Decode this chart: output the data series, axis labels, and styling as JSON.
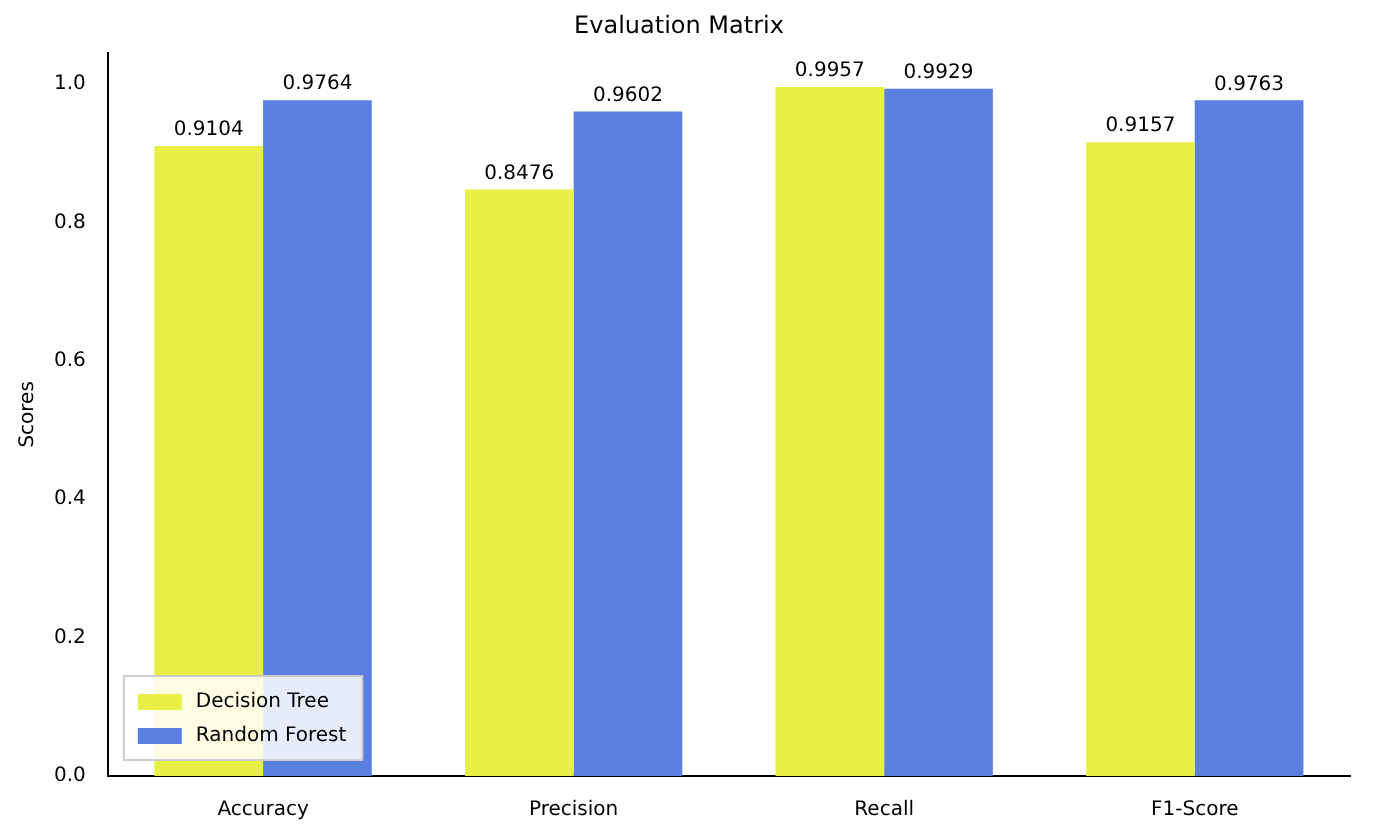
{
  "chart_data": {
    "type": "bar",
    "title": "Evaluation Matrix",
    "ylabel": "Scores",
    "categories": [
      "Accuracy",
      "Precision",
      "Recall",
      "F1-Score"
    ],
    "series": [
      {
        "name": "Decision Tree",
        "color": "#e8ef45",
        "values": [
          0.9104,
          0.8476,
          0.9957,
          0.9157
        ]
      },
      {
        "name": "Random Forest",
        "color": "#5a7fe0",
        "values": [
          0.9764,
          0.9602,
          0.9929,
          0.9763
        ]
      }
    ],
    "ylim": [
      0,
      1.045
    ],
    "yticks": [
      {
        "value": 0,
        "label": "0.0"
      },
      {
        "value": 0.2,
        "label": "0.2"
      },
      {
        "value": 0.4,
        "label": "0.4"
      },
      {
        "value": 0.6,
        "label": "0.6"
      },
      {
        "value": 0.8,
        "label": "0.8"
      },
      {
        "value": 1,
        "label": "1.0"
      }
    ],
    "data_labels": true,
    "grid": false,
    "legend": "bottom left"
  }
}
